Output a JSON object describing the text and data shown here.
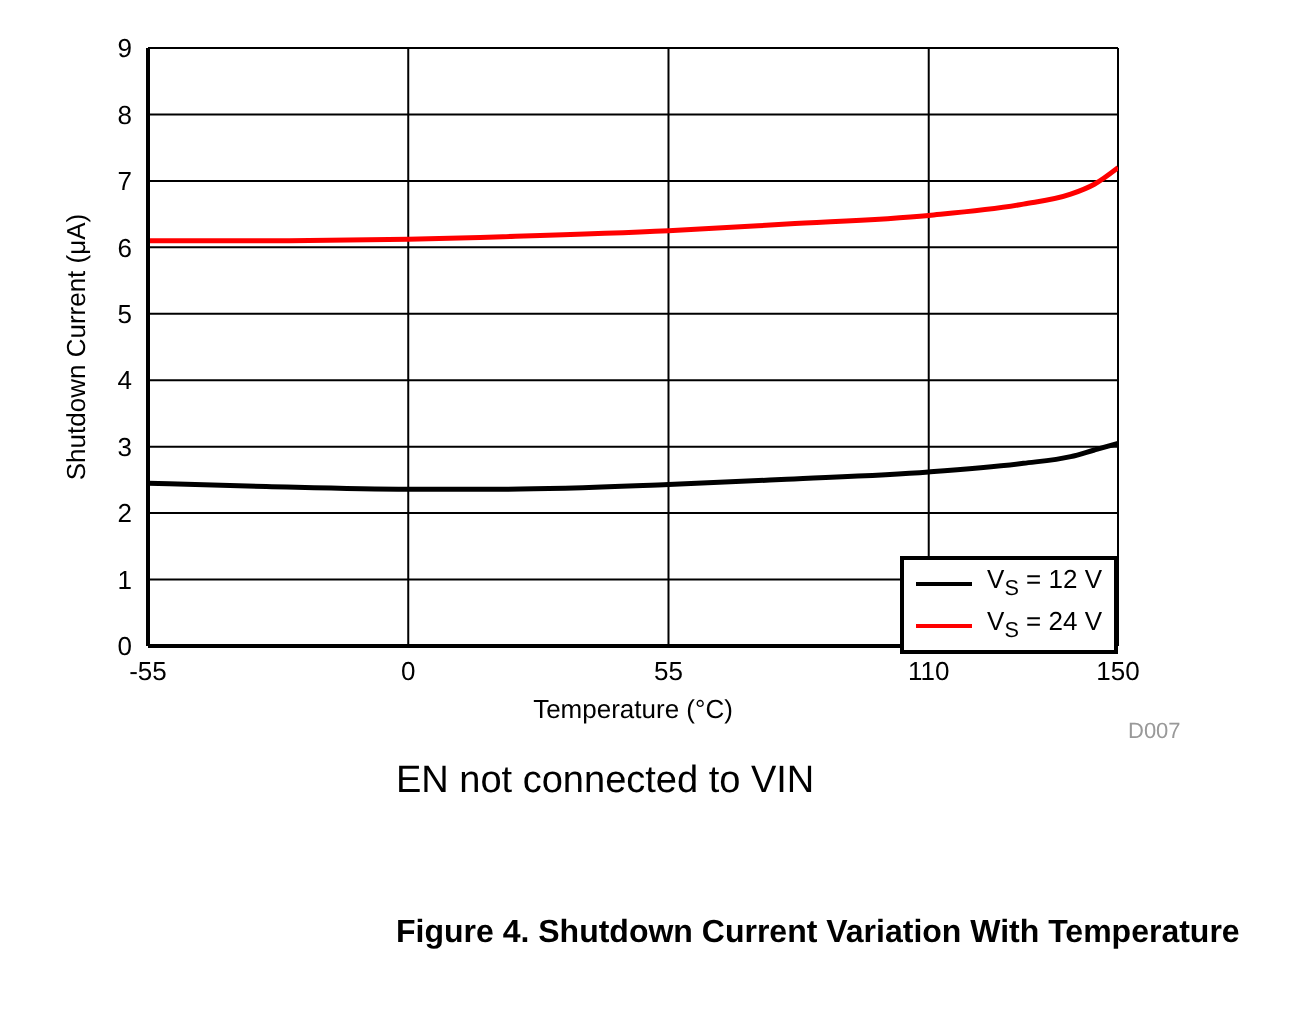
{
  "chart_data": {
    "type": "line",
    "title": "Figure 4. Shutdown Current Variation With Temperature",
    "xlabel": "Temperature (°C)",
    "ylabel": "Shutdown Current (μA)",
    "annotations": [
      "D007",
      "EN not connected to VIN"
    ],
    "xlim": [
      -55,
      150
    ],
    "xticks": [
      -55,
      0,
      55,
      110,
      150
    ],
    "ylim": [
      0,
      9
    ],
    "yticks": [
      0,
      1,
      2,
      3,
      4,
      5,
      6,
      7,
      8,
      9
    ],
    "grid": true,
    "legend": "bottom right",
    "line_style": "solid",
    "marker": "none",
    "series": [
      {
        "name": "V$_{S}$ = 12 V",
        "color": "#000000",
        "x": [
          -55,
          -30,
          0,
          20,
          55,
          80,
          110,
          130,
          140,
          145,
          150
        ],
        "values": [
          2.45,
          2.4,
          2.36,
          2.36,
          2.43,
          2.51,
          2.62,
          2.75,
          2.85,
          2.95,
          3.05
        ]
      },
      {
        "name": "V$_{S}$ = 24 V",
        "color": "#ff0000",
        "x": [
          -55,
          -30,
          0,
          20,
          55,
          80,
          110,
          130,
          140,
          145,
          150
        ],
        "values": [
          6.1,
          6.1,
          6.12,
          6.16,
          6.25,
          6.35,
          6.48,
          6.65,
          6.8,
          6.95,
          7.2
        ]
      }
    ]
  }
}
